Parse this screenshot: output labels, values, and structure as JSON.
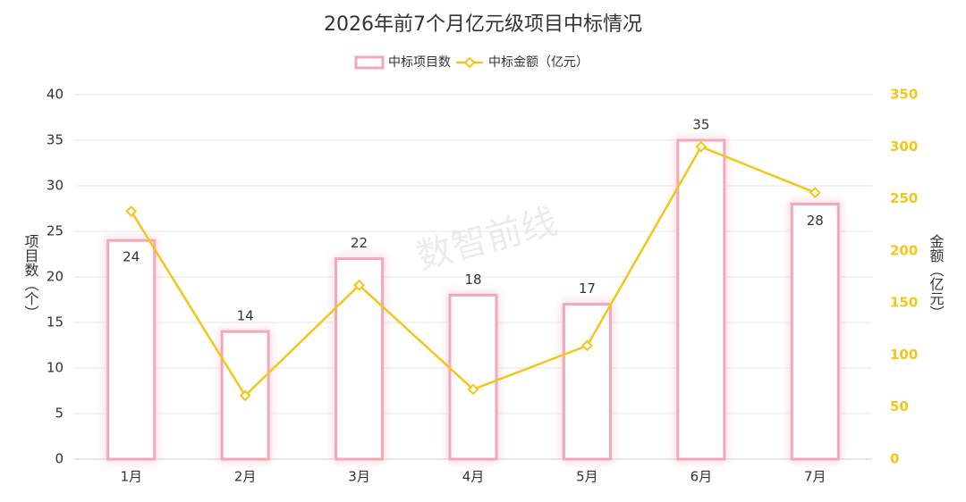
{
  "chart_data": {
    "type": "bar",
    "title": "2026年前7个月亿元级项目中标情况",
    "watermark": "数智前线",
    "y_label": "项目数（个）",
    "y2_label": "金额（亿元）",
    "categories": [
      "1月",
      "2月",
      "3月",
      "4月",
      "5月",
      "6月",
      "7月"
    ],
    "series": [
      {
        "name": "中标项目数",
        "type": "bar",
        "color": "#f4a7b9",
        "values": [
          24,
          14,
          22,
          18,
          17,
          35,
          28
        ]
      },
      {
        "name": "中标金额（亿元）",
        "type": "line",
        "axis": "y2",
        "color": "#f5c518",
        "values": [
          238,
          61,
          167,
          67,
          109,
          300,
          256
        ]
      }
    ],
    "ylim": [
      0,
      40
    ],
    "yticks": [
      0,
      5,
      10,
      15,
      20,
      25,
      30,
      35,
      40
    ],
    "y2lim": [
      0,
      350
    ],
    "y2ticks": [
      0,
      50,
      100,
      150,
      200,
      250,
      300,
      350
    ],
    "grid": true,
    "legend": "top"
  }
}
